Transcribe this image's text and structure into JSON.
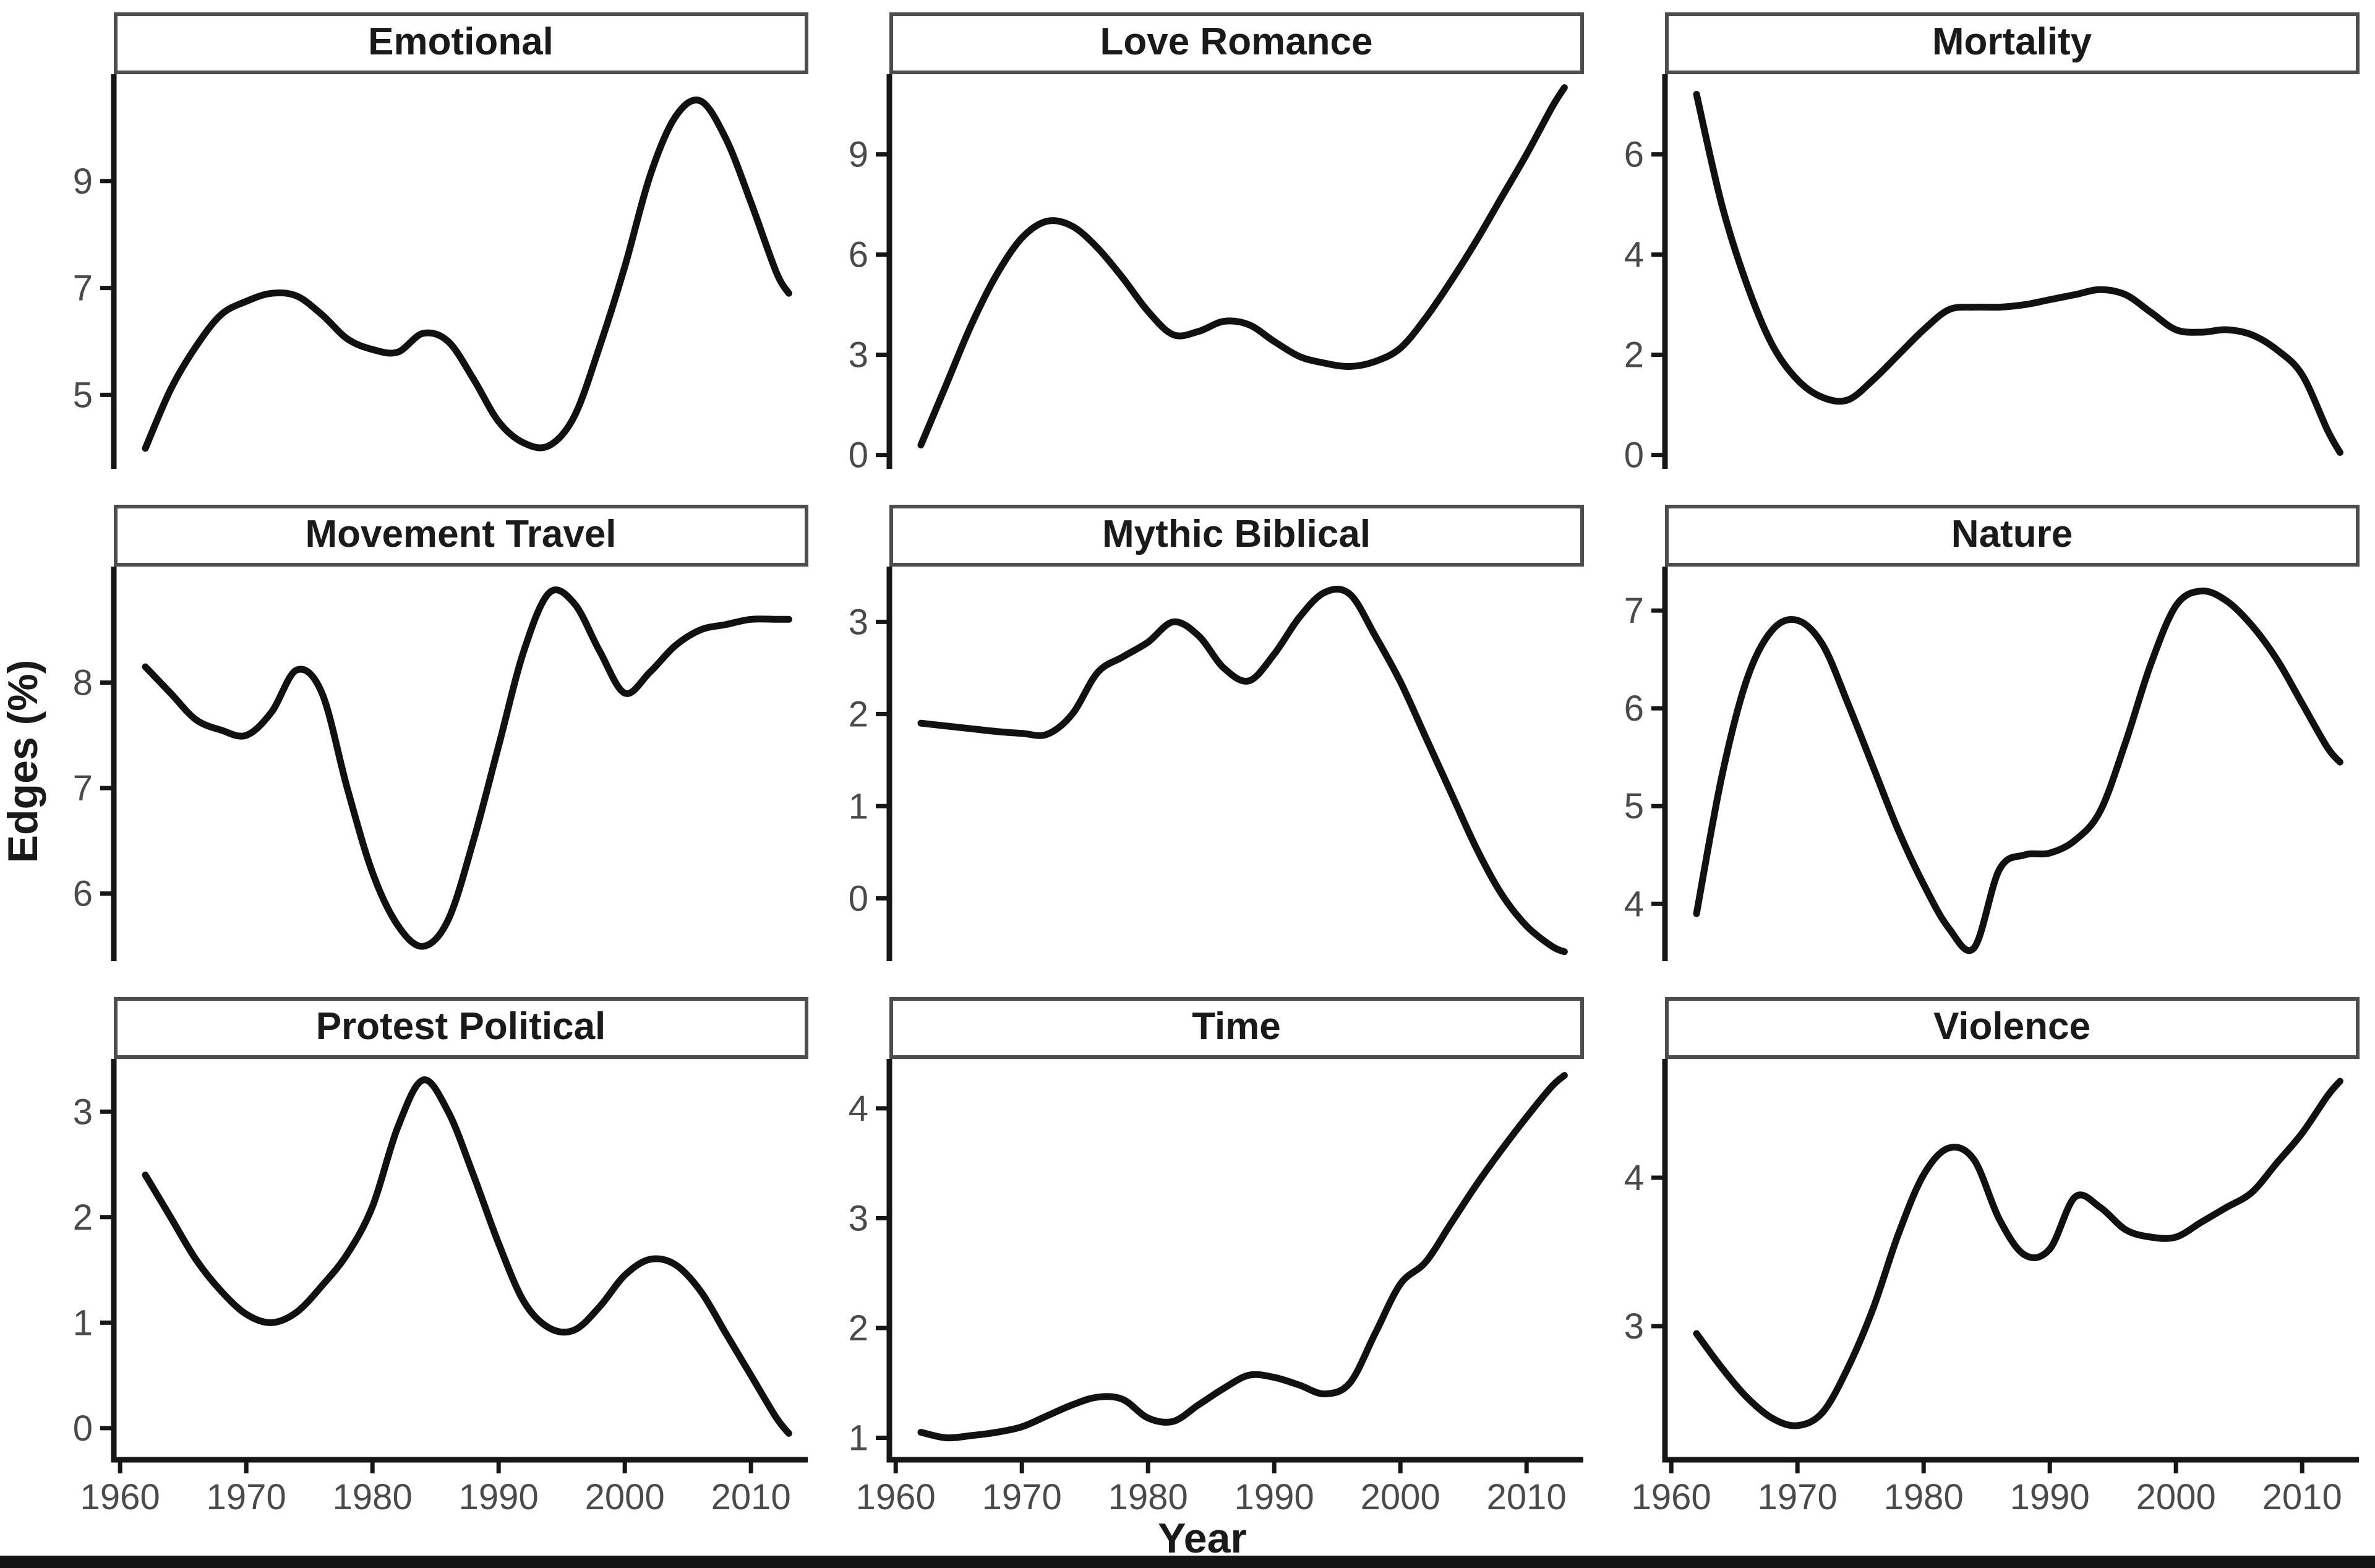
{
  "figure": {
    "y_axis_label": "Edges (%)",
    "x_axis_label": "Year"
  },
  "style": {
    "background": "#ffffff",
    "curve": "#111111",
    "axis": "#161616",
    "tick_label": "#4a4a4a",
    "title": "#1a1a1a",
    "strip_border": "#4d4d4d",
    "strip_fill": "#ffffff",
    "bottom_bar": "#141414"
  },
  "chart_data": {
    "type": "line",
    "layout": "3x3 facet grid, shared x axis, free y scales, no gridlines, smoothed black trend lines",
    "title": "",
    "xlabel": "Year",
    "ylabel": "Edges (%)",
    "legend": "none",
    "xlim": [
      1959.5,
      2014.5
    ],
    "xticks": [
      1960,
      1970,
      1980,
      1990,
      2000,
      2010
    ],
    "x": [
      1962,
      1964,
      1966,
      1968,
      1970,
      1972,
      1974,
      1976,
      1978,
      1980,
      1982,
      1984,
      1986,
      1988,
      1990,
      1992,
      1994,
      1996,
      1998,
      2000,
      2002,
      2004,
      2006,
      2008,
      2010,
      2012,
      2013
    ],
    "facets": [
      {
        "title": "Emotional",
        "yticks": [
          5,
          7,
          9
        ],
        "ylim": [
          3.5,
          11.0
        ],
        "values": [
          4.0,
          5.1,
          5.9,
          6.5,
          6.75,
          6.9,
          6.85,
          6.5,
          6.05,
          5.85,
          5.8,
          6.15,
          6.0,
          5.3,
          4.5,
          4.1,
          4.05,
          4.6,
          5.9,
          7.4,
          9.1,
          10.2,
          10.5,
          9.8,
          8.6,
          7.3,
          6.9
        ]
      },
      {
        "title": "Love Romance",
        "yticks": [
          0,
          3,
          6,
          9
        ],
        "ylim": [
          -0.6,
          11.4
        ],
        "values": [
          0.3,
          2.1,
          3.9,
          5.4,
          6.5,
          7.0,
          6.85,
          6.2,
          5.3,
          4.3,
          3.6,
          3.7,
          4.0,
          3.9,
          3.4,
          2.95,
          2.75,
          2.65,
          2.8,
          3.2,
          4.1,
          5.2,
          6.4,
          7.7,
          9.0,
          10.4,
          11.0
        ]
      },
      {
        "title": "Mortality",
        "yticks": [
          0,
          2,
          4,
          6
        ],
        "ylim": [
          -0.4,
          7.6
        ],
        "values": [
          7.2,
          5.0,
          3.4,
          2.2,
          1.5,
          1.15,
          1.1,
          1.5,
          2.0,
          2.5,
          2.9,
          2.95,
          2.95,
          3.0,
          3.1,
          3.2,
          3.3,
          3.2,
          2.85,
          2.5,
          2.45,
          2.5,
          2.4,
          2.1,
          1.6,
          0.5,
          0.05
        ]
      },
      {
        "title": "Movement Travel",
        "yticks": [
          6,
          7,
          8
        ],
        "ylim": [
          5.3,
          9.1
        ],
        "values": [
          8.15,
          7.9,
          7.65,
          7.55,
          7.5,
          7.72,
          8.12,
          7.9,
          7.0,
          6.2,
          5.7,
          5.5,
          5.75,
          6.5,
          7.4,
          8.3,
          8.85,
          8.75,
          8.3,
          7.9,
          8.1,
          8.35,
          8.5,
          8.55,
          8.6,
          8.6,
          8.6
        ]
      },
      {
        "title": "Mythic Biblical",
        "yticks": [
          0,
          1,
          2,
          3
        ],
        "ylim": [
          -0.75,
          3.6
        ],
        "values": [
          1.9,
          1.87,
          1.84,
          1.81,
          1.79,
          1.78,
          2.0,
          2.45,
          2.62,
          2.78,
          3.0,
          2.85,
          2.5,
          2.36,
          2.65,
          3.05,
          3.32,
          3.3,
          2.85,
          2.35,
          1.75,
          1.15,
          0.55,
          0.05,
          -0.3,
          -0.52,
          -0.58
        ]
      },
      {
        "title": "Nature",
        "yticks": [
          4,
          5,
          6,
          7
        ],
        "ylim": [
          3.35,
          7.45
        ],
        "values": [
          3.9,
          5.3,
          6.3,
          6.8,
          6.9,
          6.65,
          6.05,
          5.4,
          4.75,
          4.2,
          3.75,
          3.55,
          4.35,
          4.5,
          4.52,
          4.65,
          4.95,
          5.65,
          6.45,
          7.05,
          7.2,
          7.1,
          6.85,
          6.5,
          6.05,
          5.6,
          5.45
        ]
      },
      {
        "title": "Protest Political",
        "yticks": [
          0,
          1,
          2,
          3
        ],
        "ylim": [
          -0.3,
          3.5
        ],
        "values": [
          2.4,
          2.0,
          1.6,
          1.3,
          1.08,
          1.0,
          1.1,
          1.35,
          1.65,
          2.1,
          2.85,
          3.3,
          3.0,
          2.4,
          1.75,
          1.2,
          0.95,
          0.93,
          1.15,
          1.45,
          1.6,
          1.55,
          1.3,
          0.9,
          0.5,
          0.1,
          -0.05
        ]
      },
      {
        "title": "Time",
        "yticks": [
          1,
          2,
          3,
          4
        ],
        "ylim": [
          0.8,
          4.45
        ],
        "values": [
          1.05,
          1.0,
          1.02,
          1.05,
          1.1,
          1.2,
          1.3,
          1.37,
          1.35,
          1.18,
          1.15,
          1.3,
          1.45,
          1.57,
          1.55,
          1.48,
          1.4,
          1.5,
          1.95,
          2.4,
          2.6,
          2.95,
          3.3,
          3.62,
          3.92,
          4.2,
          4.3
        ]
      },
      {
        "title": "Violence",
        "yticks": [
          3,
          4
        ],
        "ylim": [
          2.1,
          4.8
        ],
        "values": [
          2.95,
          2.72,
          2.52,
          2.38,
          2.33,
          2.42,
          2.72,
          3.12,
          3.62,
          4.02,
          4.2,
          4.12,
          3.72,
          3.48,
          3.52,
          3.87,
          3.8,
          3.65,
          3.6,
          3.6,
          3.7,
          3.8,
          3.9,
          4.1,
          4.3,
          4.55,
          4.65
        ]
      }
    ]
  }
}
